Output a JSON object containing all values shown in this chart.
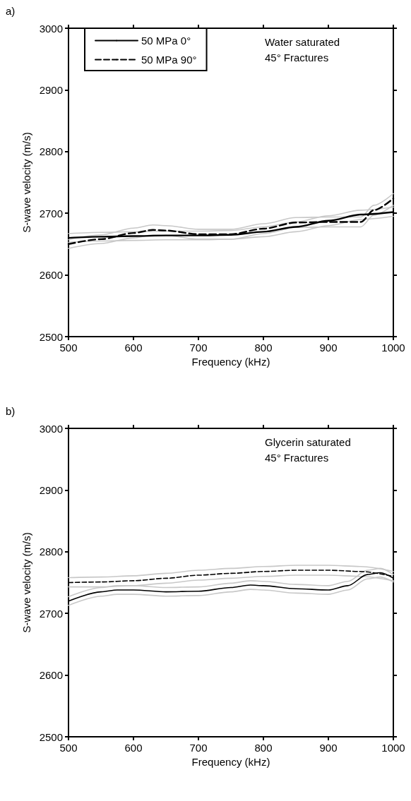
{
  "chart_data": [
    {
      "type": "line",
      "title": "a)",
      "xlabel": "Frequency (kHz)",
      "ylabel": "S-wave velocity (m/s)",
      "annotations": [
        "Water saturated\n45° Fractures"
      ],
      "xlim": [
        500,
        1000
      ],
      "xticks": [
        500,
        600,
        700,
        800,
        900,
        1000
      ],
      "ylim": [
        2500,
        3000
      ],
      "yticks": [
        2500,
        2600,
        2700,
        2800,
        2900,
        3000
      ],
      "grid": false,
      "legend": "top left",
      "marker": "none",
      "series": [
        {
          "color": "#c8c8c8",
          "line_style": "solid",
          "x": [
            500,
            550,
            600,
            650,
            700,
            750,
            800,
            850,
            900,
            950,
            1000
          ],
          "values": [
            2653,
            2655,
            2656,
            2657,
            2657,
            2658,
            2662,
            2670,
            2680,
            2690,
            2695
          ]
        },
        {
          "color": "#c8c8c8",
          "line_style": "solid",
          "x": [
            500,
            550,
            600,
            650,
            700,
            750,
            800,
            850,
            900,
            950,
            1000
          ],
          "values": [
            2667,
            2669,
            2670,
            2671,
            2671,
            2672,
            2678,
            2686,
            2696,
            2705,
            2710
          ]
        },
        {
          "color": "#c8c8c8",
          "line_style": "solid",
          "x": [
            500,
            550,
            600,
            630,
            650,
            700,
            750,
            800,
            850,
            900,
            950,
            970,
            1000
          ],
          "values": [
            2643,
            2651,
            2660,
            2665,
            2664,
            2658,
            2658,
            2667,
            2677,
            2678,
            2678,
            2697,
            2713
          ]
        },
        {
          "color": "#c8c8c8",
          "line_style": "solid",
          "x": [
            500,
            550,
            600,
            630,
            650,
            700,
            750,
            800,
            850,
            900,
            950,
            970,
            1000
          ],
          "values": [
            2657,
            2665,
            2676,
            2681,
            2680,
            2674,
            2674,
            2683,
            2693,
            2694,
            2694,
            2713,
            2732
          ]
        },
        {
          "name": "50 MPa 0°",
          "color": "#000000",
          "line_style": "solid",
          "x": [
            500,
            550,
            600,
            650,
            700,
            750,
            800,
            850,
            900,
            950,
            1000
          ],
          "values": [
            2660,
            2662,
            2663,
            2664,
            2664,
            2665,
            2670,
            2678,
            2688,
            2698,
            2702
          ]
        },
        {
          "name": "50 MPa 90°",
          "color": "#000000",
          "line_style": "dashed",
          "x": [
            500,
            550,
            600,
            630,
            650,
            700,
            750,
            800,
            850,
            900,
            950,
            970,
            1000
          ],
          "values": [
            2650,
            2658,
            2668,
            2673,
            2672,
            2666,
            2666,
            2675,
            2685,
            2686,
            2686,
            2705,
            2724
          ]
        }
      ]
    },
    {
      "type": "line",
      "title": "b)",
      "xlabel": "Frequency (kHz)",
      "ylabel": "S-wave velocity (m/s)",
      "annotations": [
        "Glycerin saturated\n45° Fractures"
      ],
      "xlim": [
        500,
        1000
      ],
      "xticks": [
        500,
        600,
        700,
        800,
        900,
        1000
      ],
      "ylim": [
        2500,
        3000
      ],
      "yticks": [
        2500,
        2600,
        2700,
        2800,
        2900,
        3000
      ],
      "grid": false,
      "marker": "none",
      "series": [
        {
          "color": "#c8c8c8",
          "line_style": "solid",
          "x": [
            500,
            550,
            575,
            600,
            650,
            700,
            750,
            780,
            800,
            850,
            900,
            930,
            960,
            980,
            1000
          ],
          "values": [
            2713,
            2728,
            2731,
            2731,
            2728,
            2729,
            2735,
            2739,
            2738,
            2733,
            2731,
            2738,
            2756,
            2759,
            2751
          ]
        },
        {
          "color": "#c8c8c8",
          "line_style": "solid",
          "x": [
            500,
            550,
            575,
            600,
            650,
            700,
            750,
            780,
            800,
            850,
            900,
            930,
            960,
            980,
            1000
          ],
          "values": [
            2727,
            2742,
            2745,
            2745,
            2742,
            2743,
            2749,
            2753,
            2752,
            2747,
            2745,
            2752,
            2770,
            2773,
            2763
          ]
        },
        {
          "color": "#c8c8c8",
          "line_style": "solid",
          "x": [
            500,
            550,
            600,
            650,
            700,
            750,
            800,
            850,
            900,
            950,
            1000
          ],
          "values": [
            2743,
            2743,
            2745,
            2749,
            2754,
            2757,
            2760,
            2762,
            2762,
            2760,
            2753
          ]
        },
        {
          "color": "#c8c8c8",
          "line_style": "solid",
          "x": [
            500,
            550,
            600,
            650,
            700,
            750,
            800,
            850,
            900,
            950,
            1000
          ],
          "values": [
            2758,
            2759,
            2761,
            2765,
            2770,
            2773,
            2776,
            2778,
            2778,
            2776,
            2768
          ]
        },
        {
          "color": "#000000",
          "line_style": "solid",
          "x": [
            500,
            550,
            575,
            600,
            650,
            700,
            750,
            780,
            800,
            850,
            900,
            930,
            960,
            980,
            1000
          ],
          "values": [
            2720,
            2735,
            2738,
            2738,
            2735,
            2736,
            2742,
            2746,
            2745,
            2740,
            2738,
            2745,
            2763,
            2766,
            2757
          ]
        },
        {
          "color": "#000000",
          "line_style": "dashed",
          "x": [
            500,
            550,
            600,
            650,
            700,
            750,
            800,
            850,
            900,
            950,
            1000
          ],
          "values": [
            2750,
            2751,
            2753,
            2757,
            2762,
            2765,
            2768,
            2770,
            2770,
            2768,
            2760
          ]
        }
      ]
    }
  ]
}
